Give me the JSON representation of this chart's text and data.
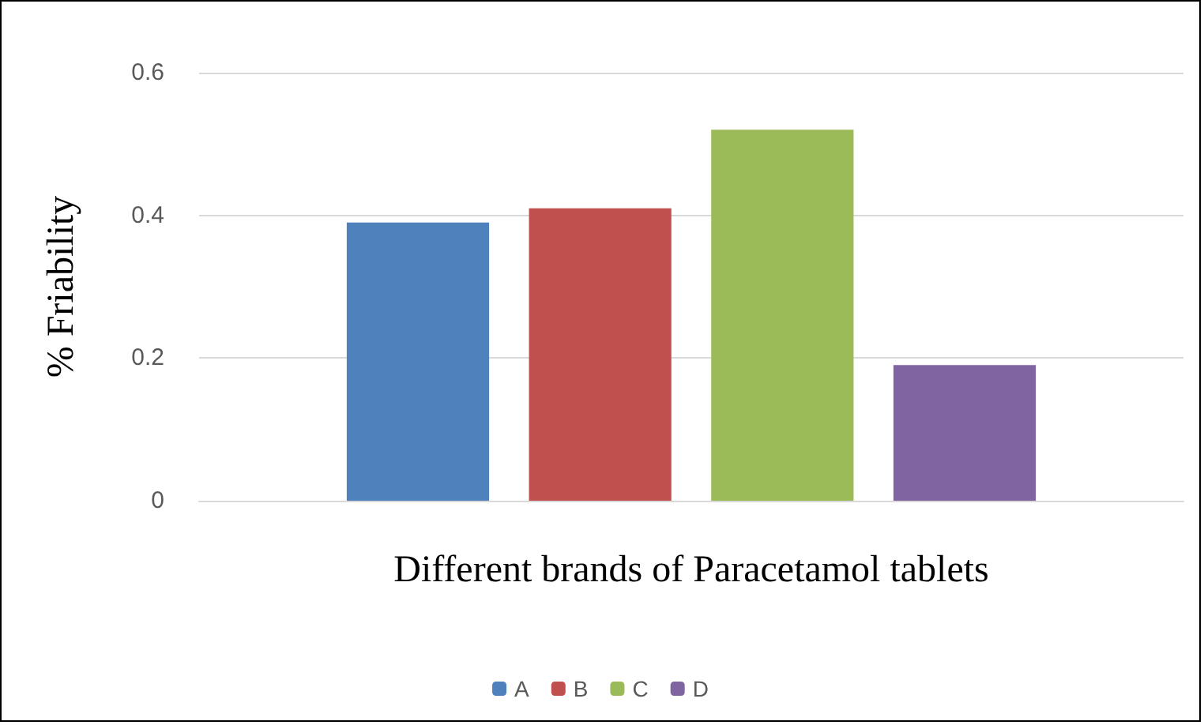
{
  "chart_data": {
    "type": "bar",
    "ylabel": "% Friability",
    "xlabel": "Different brands of Paracetamol tablets",
    "categories": [
      null
    ],
    "series": [
      {
        "name": "A",
        "color": "#4f81bd",
        "values": [
          0.39
        ]
      },
      {
        "name": "B",
        "color": "#c0504d",
        "values": [
          0.41
        ]
      },
      {
        "name": "C",
        "color": "#9bbb59",
        "values": [
          0.52
        ]
      },
      {
        "name": "D",
        "color": "#8064a2",
        "values": [
          0.19
        ]
      }
    ],
    "ylim": [
      0,
      0.6
    ],
    "yticks": [
      0,
      0.2,
      0.4,
      0.6
    ],
    "grid": "y",
    "legend": "bottom"
  }
}
